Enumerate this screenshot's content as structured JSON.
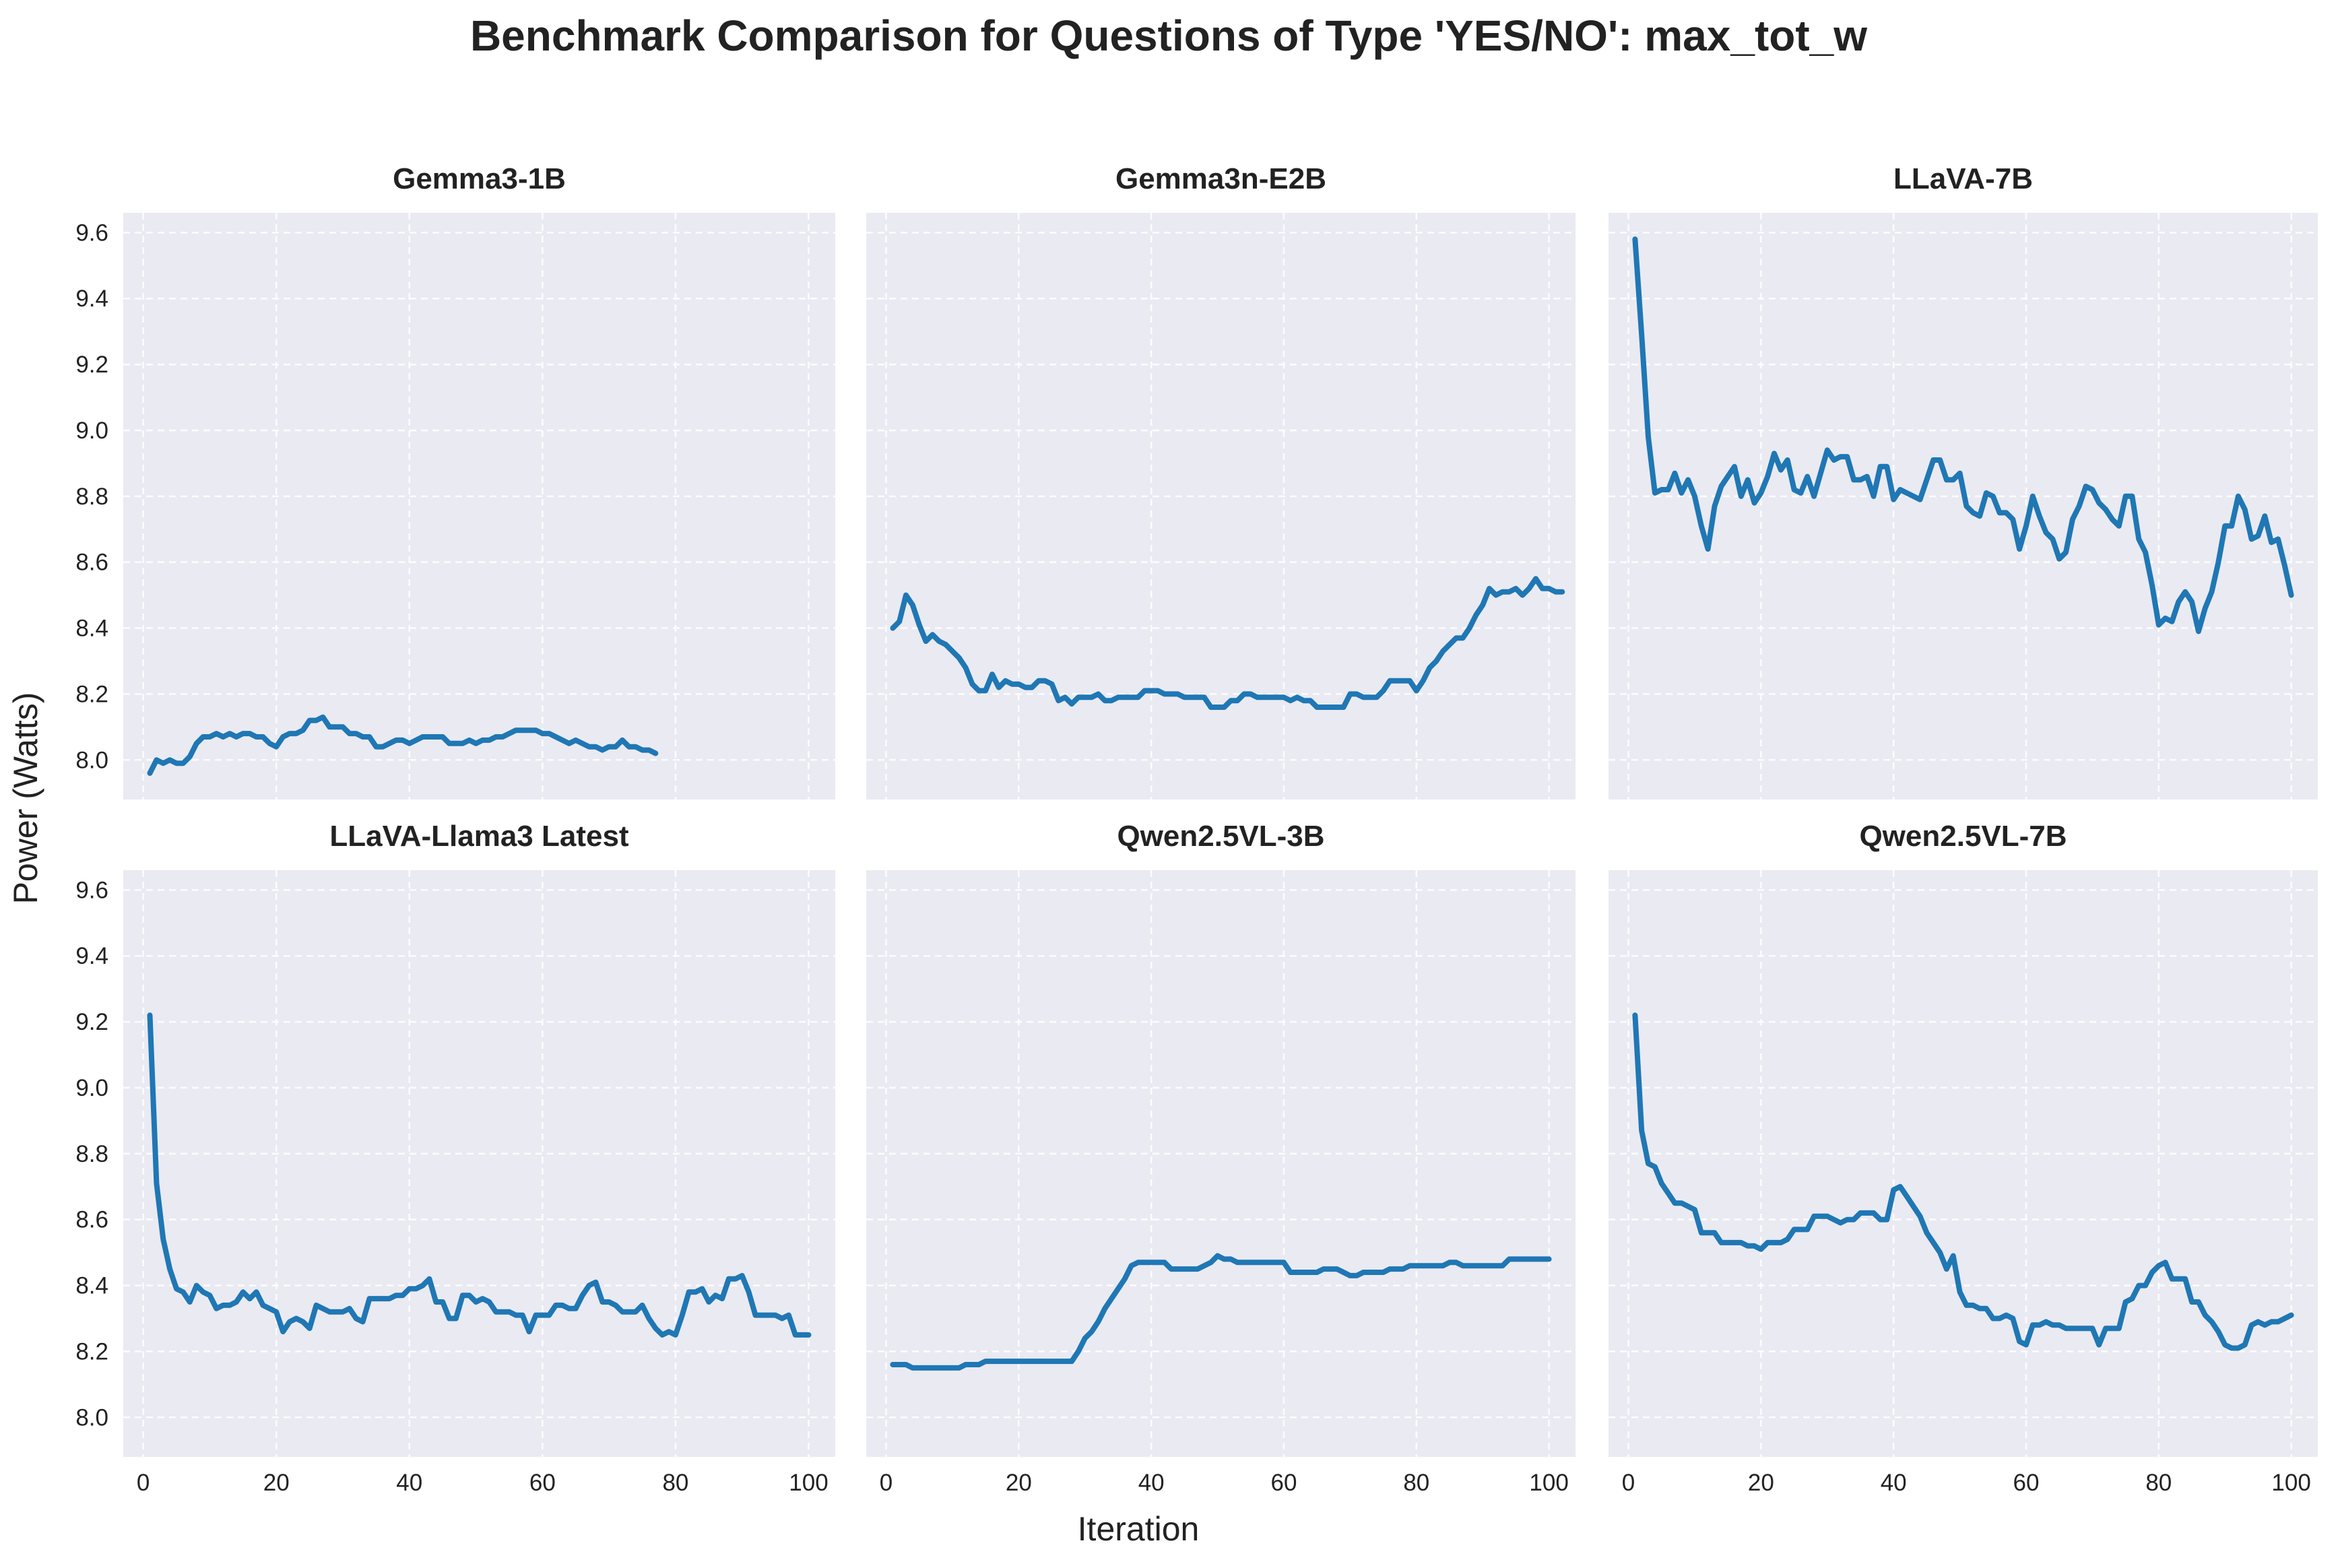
{
  "figure": {
    "title": "Benchmark Comparison for Questions of Type 'YES/NO': max_tot_w",
    "xlabel": "Iteration",
    "ylabel": "Power (Watts)"
  },
  "colors": {
    "line": "#1f77b4",
    "panel_bg": "#eaeaf2",
    "grid": "#ffffff"
  },
  "chart_data": {
    "type": "line",
    "layout": "2x3 grid, shared x and y axes",
    "xlim": [
      -3,
      104
    ],
    "ylim": [
      7.88,
      9.66
    ],
    "xticks": [
      0,
      20,
      40,
      60,
      80,
      100
    ],
    "yticks": [
      8.0,
      8.2,
      8.4,
      8.6,
      8.8,
      9.0,
      9.2,
      9.4,
      9.6
    ],
    "grid": true,
    "panels": [
      {
        "title": "Gemma3-1B",
        "start": 1,
        "values": [
          7.96,
          8.0,
          7.99,
          8.0,
          7.99,
          7.99,
          8.01,
          8.05,
          8.07,
          8.07,
          8.08,
          8.07,
          8.08,
          8.07,
          8.08,
          8.08,
          8.07,
          8.07,
          8.05,
          8.04,
          8.07,
          8.08,
          8.08,
          8.09,
          8.12,
          8.12,
          8.13,
          8.1,
          8.1,
          8.1,
          8.08,
          8.08,
          8.07,
          8.07,
          8.04,
          8.04,
          8.05,
          8.06,
          8.06,
          8.05,
          8.06,
          8.07,
          8.07,
          8.07,
          8.07,
          8.05,
          8.05,
          8.05,
          8.06,
          8.05,
          8.06,
          8.06,
          8.07,
          8.07,
          8.08,
          8.09,
          8.09,
          8.09,
          8.09,
          8.08,
          8.08,
          8.07,
          8.06,
          8.05,
          8.06,
          8.05,
          8.04,
          8.04,
          8.03,
          8.04,
          8.04,
          8.06,
          8.04,
          8.04,
          8.03,
          8.03,
          8.02
        ]
      },
      {
        "title": "Gemma3n-E2B",
        "start": 1,
        "values": [
          8.4,
          8.42,
          8.5,
          8.47,
          8.41,
          8.36,
          8.38,
          8.36,
          8.35,
          8.33,
          8.31,
          8.28,
          8.23,
          8.21,
          8.21,
          8.26,
          8.22,
          8.24,
          8.23,
          8.23,
          8.22,
          8.22,
          8.24,
          8.24,
          8.23,
          8.18,
          8.19,
          8.17,
          8.19,
          8.19,
          8.19,
          8.2,
          8.18,
          8.18,
          8.19,
          8.19,
          8.19,
          8.19,
          8.21,
          8.21,
          8.21,
          8.2,
          8.2,
          8.2,
          8.19,
          8.19,
          8.19,
          8.19,
          8.16,
          8.16,
          8.16,
          8.18,
          8.18,
          8.2,
          8.2,
          8.19,
          8.19,
          8.19,
          8.19,
          8.19,
          8.18,
          8.19,
          8.18,
          8.18,
          8.16,
          8.16,
          8.16,
          8.16,
          8.16,
          8.2,
          8.2,
          8.19,
          8.19,
          8.19,
          8.21,
          8.24,
          8.24,
          8.24,
          8.24,
          8.21,
          8.24,
          8.28,
          8.3,
          8.33,
          8.35,
          8.37,
          8.37,
          8.4,
          8.44,
          8.47,
          8.52,
          8.5,
          8.51,
          8.51,
          8.52,
          8.5,
          8.52,
          8.55,
          8.52,
          8.52,
          8.51,
          8.51
        ]
      },
      {
        "title": "LLaVA-7B",
        "start": 1,
        "values": [
          9.58,
          9.29,
          8.98,
          8.81,
          8.82,
          8.82,
          8.87,
          8.81,
          8.85,
          8.8,
          8.71,
          8.64,
          8.77,
          8.83,
          8.86,
          8.89,
          8.8,
          8.85,
          8.78,
          8.81,
          8.86,
          8.93,
          8.88,
          8.91,
          8.82,
          8.81,
          8.86,
          8.8,
          8.87,
          8.94,
          8.91,
          8.92,
          8.92,
          8.85,
          8.85,
          8.86,
          8.8,
          8.89,
          8.89,
          8.79,
          8.82,
          8.81,
          8.8,
          8.79,
          8.85,
          8.91,
          8.91,
          8.85,
          8.85,
          8.87,
          8.77,
          8.75,
          8.74,
          8.81,
          8.8,
          8.75,
          8.75,
          8.73,
          8.64,
          8.71,
          8.8,
          8.74,
          8.69,
          8.67,
          8.61,
          8.63,
          8.73,
          8.77,
          8.83,
          8.82,
          8.78,
          8.76,
          8.73,
          8.71,
          8.8,
          8.8,
          8.67,
          8.63,
          8.53,
          8.41,
          8.43,
          8.42,
          8.48,
          8.51,
          8.48,
          8.39,
          8.46,
          8.51,
          8.6,
          8.71,
          8.71,
          8.8,
          8.76,
          8.67,
          8.68,
          8.74,
          8.66,
          8.67,
          8.59,
          8.5
        ]
      },
      {
        "title": "LLaVA-Llama3 Latest",
        "start": 1,
        "values": [
          9.22,
          8.71,
          8.54,
          8.45,
          8.39,
          8.38,
          8.35,
          8.4,
          8.38,
          8.37,
          8.33,
          8.34,
          8.34,
          8.35,
          8.38,
          8.36,
          8.38,
          8.34,
          8.33,
          8.32,
          8.26,
          8.29,
          8.3,
          8.29,
          8.27,
          8.34,
          8.33,
          8.32,
          8.32,
          8.32,
          8.33,
          8.3,
          8.29,
          8.36,
          8.36,
          8.36,
          8.36,
          8.37,
          8.37,
          8.39,
          8.39,
          8.4,
          8.42,
          8.35,
          8.35,
          8.3,
          8.3,
          8.37,
          8.37,
          8.35,
          8.36,
          8.35,
          8.32,
          8.32,
          8.32,
          8.31,
          8.31,
          8.26,
          8.31,
          8.31,
          8.31,
          8.34,
          8.34,
          8.33,
          8.33,
          8.37,
          8.4,
          8.41,
          8.35,
          8.35,
          8.34,
          8.32,
          8.32,
          8.32,
          8.34,
          8.3,
          8.27,
          8.25,
          8.26,
          8.25,
          8.31,
          8.38,
          8.38,
          8.39,
          8.35,
          8.37,
          8.36,
          8.42,
          8.42,
          8.43,
          8.38,
          8.31,
          8.31,
          8.31,
          8.31,
          8.3,
          8.31,
          8.25,
          8.25,
          8.25
        ]
      },
      {
        "title": "Qwen2.5VL-3B",
        "start": 1,
        "values": [
          8.16,
          8.16,
          8.16,
          8.15,
          8.15,
          8.15,
          8.15,
          8.15,
          8.15,
          8.15,
          8.15,
          8.16,
          8.16,
          8.16,
          8.17,
          8.17,
          8.17,
          8.17,
          8.17,
          8.17,
          8.17,
          8.17,
          8.17,
          8.17,
          8.17,
          8.17,
          8.17,
          8.17,
          8.2,
          8.24,
          8.26,
          8.29,
          8.33,
          8.36,
          8.39,
          8.42,
          8.46,
          8.47,
          8.47,
          8.47,
          8.47,
          8.47,
          8.45,
          8.45,
          8.45,
          8.45,
          8.45,
          8.46,
          8.47,
          8.49,
          8.48,
          8.48,
          8.47,
          8.47,
          8.47,
          8.47,
          8.47,
          8.47,
          8.47,
          8.47,
          8.44,
          8.44,
          8.44,
          8.44,
          8.44,
          8.45,
          8.45,
          8.45,
          8.44,
          8.43,
          8.43,
          8.44,
          8.44,
          8.44,
          8.44,
          8.45,
          8.45,
          8.45,
          8.46,
          8.46,
          8.46,
          8.46,
          8.46,
          8.46,
          8.47,
          8.47,
          8.46,
          8.46,
          8.46,
          8.46,
          8.46,
          8.46,
          8.46,
          8.48,
          8.48,
          8.48,
          8.48,
          8.48,
          8.48,
          8.48
        ]
      },
      {
        "title": "Qwen2.5VL-7B",
        "start": 1,
        "values": [
          9.22,
          8.87,
          8.77,
          8.76,
          8.71,
          8.68,
          8.65,
          8.65,
          8.64,
          8.63,
          8.56,
          8.56,
          8.56,
          8.53,
          8.53,
          8.53,
          8.53,
          8.52,
          8.52,
          8.51,
          8.53,
          8.53,
          8.53,
          8.54,
          8.57,
          8.57,
          8.57,
          8.61,
          8.61,
          8.61,
          8.6,
          8.59,
          8.6,
          8.6,
          8.62,
          8.62,
          8.62,
          8.6,
          8.6,
          8.69,
          8.7,
          8.67,
          8.64,
          8.61,
          8.56,
          8.53,
          8.5,
          8.45,
          8.49,
          8.38,
          8.34,
          8.34,
          8.33,
          8.33,
          8.3,
          8.3,
          8.31,
          8.3,
          8.23,
          8.22,
          8.28,
          8.28,
          8.29,
          8.28,
          8.28,
          8.27,
          8.27,
          8.27,
          8.27,
          8.27,
          8.22,
          8.27,
          8.27,
          8.27,
          8.35,
          8.36,
          8.4,
          8.4,
          8.44,
          8.46,
          8.47,
          8.42,
          8.42,
          8.42,
          8.35,
          8.35,
          8.31,
          8.29,
          8.26,
          8.22,
          8.21,
          8.21,
          8.22,
          8.28,
          8.29,
          8.28,
          8.29,
          8.29,
          8.3,
          8.31
        ]
      }
    ]
  }
}
